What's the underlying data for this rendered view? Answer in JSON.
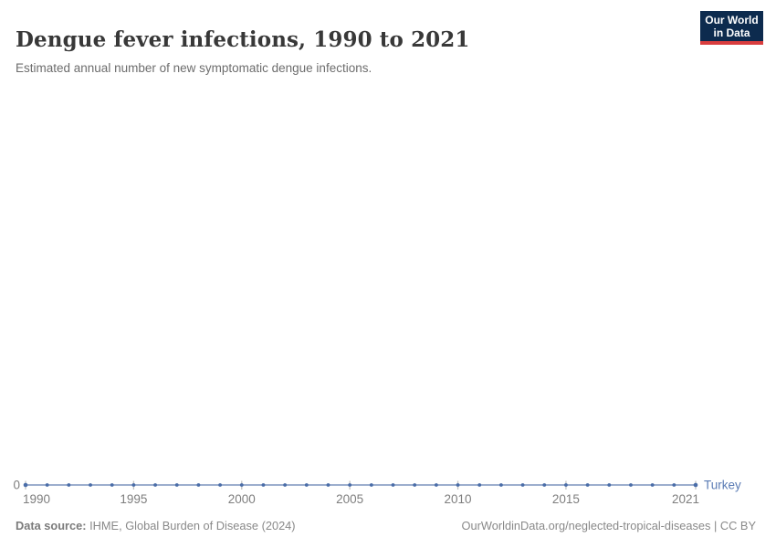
{
  "header": {
    "title": "Dengue fever infections, 1990 to 2021",
    "subtitle": "Estimated annual number of new symptomatic dengue infections.",
    "logo": {
      "line1": "Our World",
      "line2": "in Data"
    }
  },
  "chart_data": {
    "type": "line",
    "title": "Dengue fever infections, 1990 to 2021",
    "xlabel": "",
    "ylabel": "",
    "x": [
      1990,
      1991,
      1992,
      1993,
      1994,
      1995,
      1996,
      1997,
      1998,
      1999,
      2000,
      2001,
      2002,
      2003,
      2004,
      2005,
      2006,
      2007,
      2008,
      2009,
      2010,
      2011,
      2012,
      2013,
      2014,
      2015,
      2016,
      2017,
      2018,
      2019,
      2020,
      2021
    ],
    "series": [
      {
        "name": "Turkey",
        "values": [
          0,
          0,
          0,
          0,
          0,
          0,
          0,
          0,
          0,
          0,
          0,
          0,
          0,
          0,
          0,
          0,
          0,
          0,
          0,
          0,
          0,
          0,
          0,
          0,
          0,
          0,
          0,
          0,
          0,
          0,
          0,
          0
        ]
      }
    ],
    "xlim": [
      1990,
      2021
    ],
    "ylim": [
      0,
      0
    ],
    "x_ticks": [
      1990,
      1995,
      2000,
      2005,
      2010,
      2015,
      2021
    ],
    "y_axis": {
      "zero_label": "0"
    },
    "grid": false,
    "legend_position": "end-of-line",
    "colors": {
      "line": "#7b93bd",
      "marker": "#4a6da8",
      "entity_label": "#5b7cb5",
      "tick": "#c2c2c2",
      "axis_text": "#7e7e7e"
    }
  },
  "footer": {
    "data_source_label": "Data source:",
    "data_source_value": " IHME, Global Burden of Disease (2024)",
    "attribution": "OurWorldinData.org/neglected-tropical-diseases | CC BY"
  }
}
